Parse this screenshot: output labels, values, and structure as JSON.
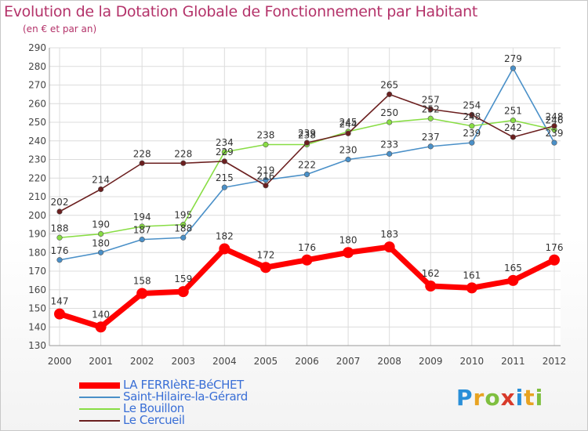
{
  "title": "Evolution de la Dotation Globale de Fonctionnement par Habitant",
  "subtitle": "(en € et par an)",
  "chart_data": {
    "type": "line",
    "title": "Evolution de la Dotation Globale de Fonctionnement par Habitant",
    "ylabel": "(en € et par an)",
    "xlabel": "",
    "x": [
      "2000",
      "2001",
      "2002",
      "2003",
      "2004",
      "2005",
      "2006",
      "2007",
      "2008",
      "2009",
      "2010",
      "2011",
      "2012"
    ],
    "ylim": [
      130,
      290
    ],
    "yticks": [
      130,
      140,
      150,
      160,
      170,
      180,
      190,
      200,
      210,
      220,
      230,
      240,
      250,
      260,
      270,
      280,
      290
    ],
    "grid": true,
    "legend_position": "bottom-left",
    "series": [
      {
        "name": "LA FERRIèRE-BéCHET",
        "color": "#ff0000",
        "values": [
          147,
          140,
          158,
          159,
          182,
          172,
          176,
          180,
          183,
          162,
          161,
          165,
          176
        ]
      },
      {
        "name": "Saint-Hilaire-la-Gérard",
        "color": "#4a90c8",
        "values": [
          176,
          180,
          187,
          188,
          215,
          219,
          222,
          230,
          233,
          237,
          239,
          279,
          239
        ]
      },
      {
        "name": "Le Bouillon",
        "color": "#88dd44",
        "values": [
          188,
          190,
          194,
          195,
          234,
          238,
          238,
          245,
          250,
          252,
          248,
          251,
          246
        ]
      },
      {
        "name": "Le Cercueil",
        "color": "#6b1f1f",
        "values": [
          202,
          214,
          228,
          228,
          229,
          216,
          239,
          244,
          265,
          257,
          254,
          242,
          248
        ]
      }
    ]
  },
  "logo": {
    "text": "Proxiti",
    "letters": [
      "P",
      "r",
      "o",
      "x",
      "i",
      "t",
      "i"
    ],
    "colors": [
      "#2a8fd8",
      "#e8a321",
      "#7fbf3f",
      "#d83a2a",
      "#2a8fd8",
      "#e8a321",
      "#7fbf3f"
    ]
  }
}
